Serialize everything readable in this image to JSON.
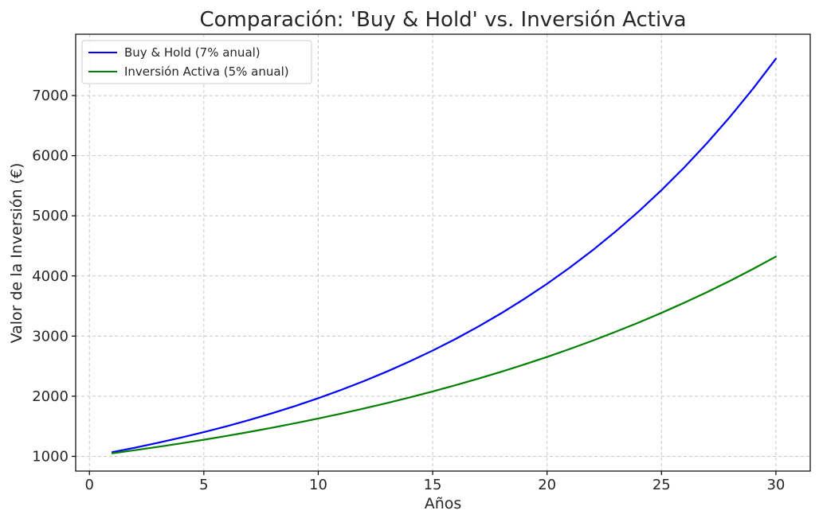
{
  "chart_data": {
    "type": "line",
    "title": "Comparación: 'Buy & Hold' vs. Inversión Activa",
    "xlabel": "Años",
    "ylabel": "Valor de la Inversión (€)",
    "xlim": [
      -0.6,
      31.5
    ],
    "ylim": [
      755,
      8020
    ],
    "xticks": [
      0,
      5,
      10,
      15,
      20,
      25,
      30
    ],
    "yticks": [
      1000,
      2000,
      3000,
      4000,
      5000,
      6000,
      7000
    ],
    "grid": true,
    "legend_position": "top-left",
    "x": [
      1,
      2,
      3,
      4,
      5,
      6,
      7,
      8,
      9,
      10,
      11,
      12,
      13,
      14,
      15,
      16,
      17,
      18,
      19,
      20,
      21,
      22,
      23,
      24,
      25,
      26,
      27,
      28,
      29,
      30
    ],
    "series": [
      {
        "name": "Buy & Hold (7% anual)",
        "color": "#0000ff",
        "values": [
          1070,
          1145,
          1225,
          1311,
          1403,
          1501,
          1606,
          1718,
          1838,
          1967,
          2105,
          2252,
          2410,
          2579,
          2759,
          2952,
          3159,
          3380,
          3617,
          3870,
          4141,
          4430,
          4741,
          5072,
          5427,
          5807,
          6214,
          6649,
          7114,
          7612
        ]
      },
      {
        "name": "Inversión Activa (5% anual)",
        "color": "#008000",
        "values": [
          1050,
          1103,
          1158,
          1216,
          1276,
          1340,
          1407,
          1477,
          1551,
          1629,
          1710,
          1796,
          1886,
          1980,
          2079,
          2183,
          2292,
          2407,
          2527,
          2653,
          2786,
          2925,
          3072,
          3225,
          3386,
          3556,
          3733,
          3920,
          4116,
          4322
        ]
      }
    ]
  }
}
